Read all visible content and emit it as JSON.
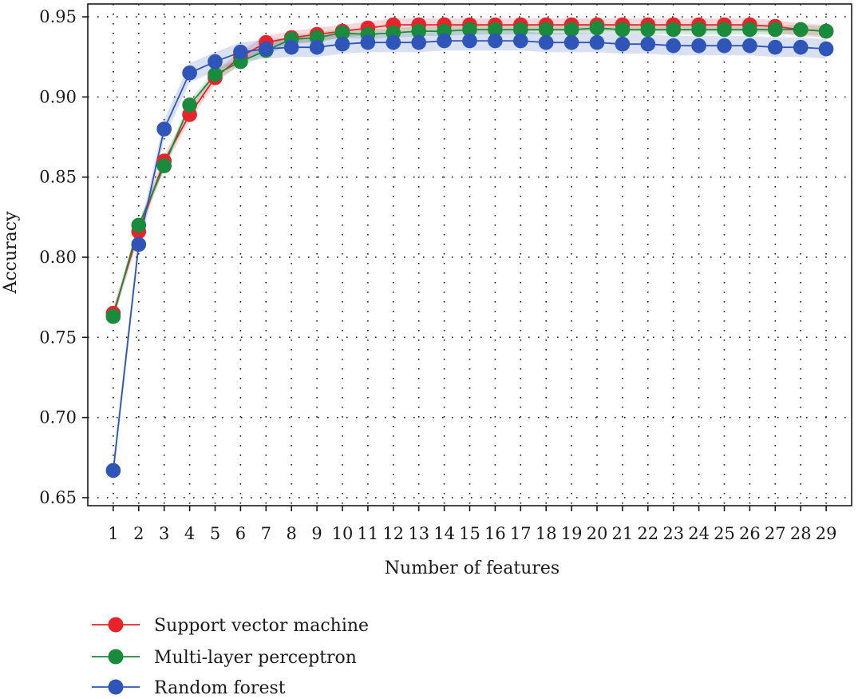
{
  "chart_data": {
    "type": "line",
    "title": "",
    "xlabel": "Number of features",
    "ylabel": "Accuracy",
    "x": [
      1,
      2,
      3,
      4,
      5,
      6,
      7,
      8,
      9,
      10,
      11,
      12,
      13,
      14,
      15,
      16,
      17,
      18,
      19,
      20,
      21,
      22,
      23,
      24,
      25,
      26,
      27,
      28,
      29
    ],
    "xlim": [
      0,
      30
    ],
    "ylim": [
      0.645,
      0.958
    ],
    "yticks": [
      0.65,
      0.7,
      0.75,
      0.8,
      0.85,
      0.9,
      0.95
    ],
    "ytick_labels": [
      "0.65",
      "0.70",
      "0.75",
      "0.80",
      "0.85",
      "0.90",
      "0.95"
    ],
    "grid": "dotted",
    "legend_position": "bottom-left",
    "series": [
      {
        "name": "Support vector machine",
        "color": "#e8232a",
        "band": 0.004,
        "values": [
          0.765,
          0.816,
          0.86,
          0.889,
          0.912,
          0.925,
          0.934,
          0.937,
          0.939,
          0.941,
          0.943,
          0.945,
          0.945,
          0.945,
          0.945,
          0.945,
          0.945,
          0.945,
          0.945,
          0.945,
          0.945,
          0.945,
          0.945,
          0.945,
          0.945,
          0.945,
          0.944,
          0.942,
          0.941
        ]
      },
      {
        "name": "Multi-layer perceptron",
        "color": "#1a8a3c",
        "band": 0.003,
        "values": [
          0.763,
          0.82,
          0.857,
          0.895,
          0.914,
          0.922,
          0.929,
          0.936,
          0.937,
          0.94,
          0.939,
          0.94,
          0.941,
          0.941,
          0.942,
          0.942,
          0.942,
          0.942,
          0.942,
          0.943,
          0.942,
          0.942,
          0.942,
          0.942,
          0.942,
          0.942,
          0.942,
          0.942,
          0.941
        ]
      },
      {
        "name": "Random forest",
        "color": "#2f55b8",
        "band": 0.006,
        "values": [
          0.667,
          0.808,
          0.88,
          0.915,
          0.922,
          0.928,
          0.93,
          0.931,
          0.931,
          0.933,
          0.934,
          0.934,
          0.934,
          0.935,
          0.935,
          0.935,
          0.935,
          0.934,
          0.934,
          0.934,
          0.933,
          0.933,
          0.932,
          0.932,
          0.932,
          0.932,
          0.931,
          0.931,
          0.93
        ]
      }
    ]
  }
}
